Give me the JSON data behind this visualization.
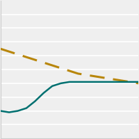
{
  "years": [
    2004,
    2005,
    2006,
    2007,
    2008,
    2009,
    2010,
    2011,
    2012,
    2013,
    2014,
    2015,
    2016,
    2017,
    2018,
    2019,
    2020
  ],
  "dashed_line": [
    65,
    63,
    61,
    59,
    57,
    55,
    53,
    51,
    49,
    47,
    46,
    45,
    44,
    43,
    42,
    41,
    40
  ],
  "solid_line": [
    20,
    19,
    20,
    22,
    27,
    33,
    38,
    40,
    41,
    41,
    41,
    41,
    41,
    41,
    41,
    41,
    41
  ],
  "dashed_color": "#b8860b",
  "solid_color": "#007070",
  "background_color": "#efefef",
  "grid_color": "#ffffff",
  "border_color": "#cccccc",
  "ylim": [
    0,
    100
  ],
  "xlim": [
    2004,
    2020
  ],
  "grid_ticks": [
    10,
    20,
    30,
    40,
    50,
    60,
    70,
    80,
    90
  ],
  "figsize": [
    2.0,
    2.0
  ],
  "dpi": 100
}
